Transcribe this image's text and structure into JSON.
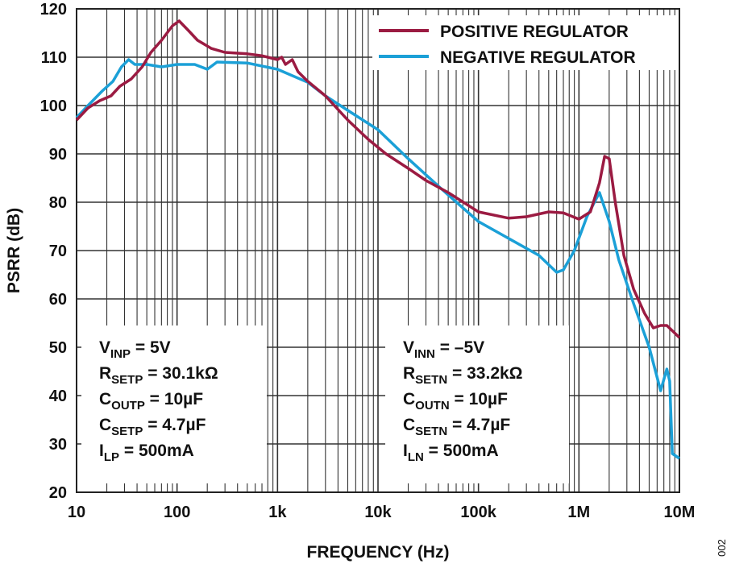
{
  "chart_data": {
    "type": "line",
    "xlabel": "FREQUENCY (Hz)",
    "ylabel": "PSRR (dB)",
    "x_scale": "log",
    "xlim": [
      10,
      10000000
    ],
    "ylim": [
      20,
      120
    ],
    "grid": true,
    "x_ticks": [
      10,
      100,
      1000,
      10000,
      100000,
      1000000,
      10000000
    ],
    "x_tick_labels": [
      "10",
      "100",
      "1k",
      "10k",
      "100k",
      "1M",
      "10M"
    ],
    "y_ticks": [
      20,
      30,
      40,
      50,
      60,
      70,
      80,
      90,
      100,
      110,
      120
    ],
    "y_tick_labels": [
      "20",
      "30",
      "40",
      "50",
      "60",
      "70",
      "80",
      "90",
      "100",
      "110",
      "120"
    ],
    "legend_placement": "top-right",
    "figure_id": "002",
    "series": [
      {
        "name": "POSITIVE REGULATOR",
        "color": "#9b1b42",
        "x": [
          10,
          13,
          17,
          22,
          27,
          35,
          45,
          55,
          70,
          90,
          105,
          130,
          160,
          220,
          300,
          500,
          700,
          1000,
          1100,
          1200,
          1400,
          1600,
          2000,
          3000,
          5000,
          8000,
          12000,
          20000,
          30000,
          50000,
          100000,
          200000,
          300000,
          500000,
          700000,
          1000000,
          1300000,
          1600000,
          1800000,
          2000000,
          2300000,
          2800000,
          3500000,
          4500000,
          5500000,
          6500000,
          7500000,
          10000000
        ],
        "y": [
          97,
          99.5,
          101,
          102,
          104,
          105.5,
          108,
          111,
          113.5,
          116.5,
          117.5,
          115.5,
          113.5,
          111.8,
          111,
          110.7,
          110.3,
          109.5,
          110,
          108.5,
          109.5,
          107,
          105,
          102,
          97,
          93,
          90,
          87,
          84.5,
          82,
          78,
          76.7,
          77,
          78,
          77.8,
          76.5,
          78,
          84,
          89.5,
          89,
          80,
          69,
          62,
          57,
          54,
          54.5,
          54.5,
          52
        ]
      },
      {
        "name": "NEGATIVE REGULATOR",
        "color": "#1ba0d7",
        "x": [
          10,
          13,
          18,
          23,
          28,
          33,
          38,
          50,
          70,
          100,
          150,
          200,
          250,
          500,
          1000,
          2000,
          3000,
          5000,
          10000,
          20000,
          50000,
          100000,
          200000,
          400000,
          600000,
          700000,
          900000,
          1200000,
          1600000,
          2000000,
          2500000,
          3500000,
          5000000,
          6500000,
          7500000,
          8000000,
          8500000,
          10000000
        ],
        "y": [
          97.5,
          100,
          103,
          105,
          108,
          109.5,
          108.5,
          108.5,
          108,
          108.5,
          108.5,
          107.5,
          109,
          108.8,
          107.5,
          104.8,
          102,
          99,
          95,
          89,
          81.5,
          76,
          72.5,
          69,
          65.5,
          66,
          70,
          77,
          82,
          76,
          68,
          59,
          50,
          41,
          45.5,
          43,
          28,
          27
        ]
      }
    ],
    "annotations": [
      {
        "lines": [
          {
            "main": "V",
            "sub": "INP",
            "rest": " = 5V"
          },
          {
            "main": "R",
            "sub": "SETP",
            "rest": " = 30.1kΩ"
          },
          {
            "main": "C",
            "sub": "OUTP",
            "rest": " = 10µF"
          },
          {
            "main": "C",
            "sub": "SETP",
            "rest": " = 4.7µF"
          },
          {
            "main": "I",
            "sub": "LP",
            "rest": " = 500mA"
          }
        ]
      },
      {
        "lines": [
          {
            "main": "V",
            "sub": "INN",
            "rest": " = –5V"
          },
          {
            "main": "R",
            "sub": "SETN",
            "rest": " = 33.2kΩ"
          },
          {
            "main": "C",
            "sub": "OUTN",
            "rest": " = 10µF"
          },
          {
            "main": "C",
            "sub": "SETN",
            "rest": " = 4.7µF"
          },
          {
            "main": "I",
            "sub": "LN",
            "rest": " = 500mA"
          }
        ]
      }
    ]
  }
}
